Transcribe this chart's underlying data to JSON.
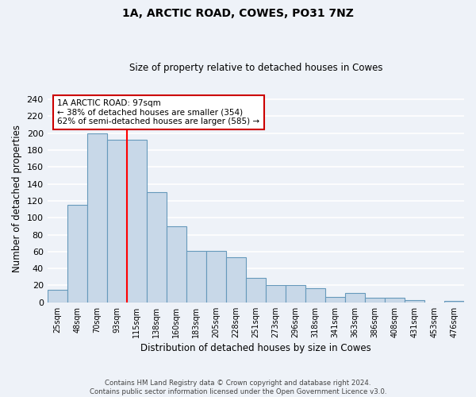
{
  "title1": "1A, ARCTIC ROAD, COWES, PO31 7NZ",
  "title2": "Size of property relative to detached houses in Cowes",
  "xlabel": "Distribution of detached houses by size in Cowes",
  "ylabel": "Number of detached properties",
  "categories": [
    "25sqm",
    "48sqm",
    "70sqm",
    "93sqm",
    "115sqm",
    "138sqm",
    "160sqm",
    "183sqm",
    "205sqm",
    "228sqm",
    "251sqm",
    "273sqm",
    "296sqm",
    "318sqm",
    "341sqm",
    "363sqm",
    "386sqm",
    "408sqm",
    "431sqm",
    "453sqm",
    "476sqm"
  ],
  "values": [
    15,
    115,
    200,
    192,
    192,
    130,
    90,
    61,
    61,
    53,
    29,
    20,
    20,
    17,
    6,
    11,
    5,
    5,
    3,
    0,
    2
  ],
  "bar_color": "#c8d8e8",
  "bar_edge_color": "#6699bb",
  "background_color": "#eef2f8",
  "grid_color": "#ffffff",
  "red_line_x": 3.5,
  "annotation_line1": "1A ARCTIC ROAD: 97sqm",
  "annotation_line2": "← 38% of detached houses are smaller (354)",
  "annotation_line3": "62% of semi-detached houses are larger (585) →",
  "annotation_box_color": "#ffffff",
  "annotation_box_edge": "#cc0000",
  "footer": "Contains HM Land Registry data © Crown copyright and database right 2024.\nContains public sector information licensed under the Open Government Licence v3.0.",
  "ylim": [
    0,
    245
  ],
  "yticks": [
    0,
    20,
    40,
    60,
    80,
    100,
    120,
    140,
    160,
    180,
    200,
    220,
    240
  ]
}
